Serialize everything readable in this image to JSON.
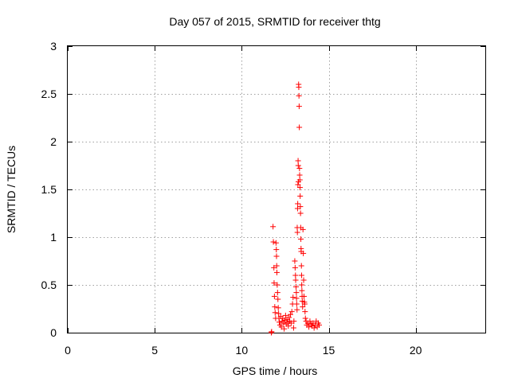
{
  "chart_data": {
    "type": "scatter",
    "title": "Day 057 of 2015, SRMTID for receiver thtg",
    "xlabel": "GPS time / hours",
    "ylabel": "SRMTID / TECUs",
    "xlim": [
      0,
      24
    ],
    "ylim": [
      0,
      3
    ],
    "xticks": [
      "0",
      "5",
      "10",
      "15",
      "20"
    ],
    "yticks": [
      "0",
      "0.5",
      "1",
      "1.5",
      "2",
      "2.5",
      "3"
    ],
    "grid": true,
    "marker": "+",
    "marker_color": "#ff0000",
    "series": [
      {
        "name": "SRMTID",
        "points": [
          [
            11.7,
            0.0
          ],
          [
            11.72,
            0.01
          ],
          [
            11.8,
            1.11
          ],
          [
            11.82,
            0.95
          ],
          [
            11.85,
            0.68
          ],
          [
            11.86,
            0.52
          ],
          [
            11.88,
            0.38
          ],
          [
            11.9,
            0.27
          ],
          [
            11.92,
            0.21
          ],
          [
            11.95,
            0.15
          ],
          [
            11.97,
            0.94
          ],
          [
            11.99,
            0.87
          ],
          [
            12.0,
            0.8
          ],
          [
            12.01,
            0.7
          ],
          [
            12.02,
            0.63
          ],
          [
            12.04,
            0.5
          ],
          [
            12.06,
            0.42
          ],
          [
            12.08,
            0.35
          ],
          [
            12.1,
            0.26
          ],
          [
            12.12,
            0.2
          ],
          [
            12.14,
            0.15
          ],
          [
            12.16,
            0.11
          ],
          [
            12.2,
            0.08
          ],
          [
            12.24,
            0.17
          ],
          [
            12.28,
            0.06
          ],
          [
            12.32,
            0.12
          ],
          [
            12.36,
            0.15
          ],
          [
            12.4,
            0.1
          ],
          [
            12.44,
            0.04
          ],
          [
            12.48,
            0.13
          ],
          [
            12.52,
            0.18
          ],
          [
            12.56,
            0.09
          ],
          [
            12.6,
            0.14
          ],
          [
            12.64,
            0.11
          ],
          [
            12.68,
            0.07
          ],
          [
            12.72,
            0.16
          ],
          [
            12.76,
            0.12
          ],
          [
            12.8,
            0.19
          ],
          [
            12.84,
            0.1
          ],
          [
            12.88,
            0.22
          ],
          [
            12.92,
            0.3
          ],
          [
            12.95,
            0.37
          ],
          [
            12.98,
            0.05
          ],
          [
            13.0,
            0.12
          ],
          [
            13.05,
            0.75
          ],
          [
            13.07,
            0.68
          ],
          [
            13.09,
            0.6
          ],
          [
            13.1,
            0.55
          ],
          [
            13.12,
            0.48
          ],
          [
            13.14,
            0.42
          ],
          [
            13.15,
            0.36
          ],
          [
            13.16,
            0.3
          ],
          [
            13.18,
            0.24
          ],
          [
            13.19,
            1.1
          ],
          [
            13.2,
            1.05
          ],
          [
            13.21,
            1.3
          ],
          [
            13.22,
            1.35
          ],
          [
            13.23,
            1.55
          ],
          [
            13.24,
            1.8
          ],
          [
            13.25,
            1.75
          ],
          [
            13.26,
            1.58
          ],
          [
            13.27,
            2.6
          ],
          [
            13.28,
            2.57
          ],
          [
            13.29,
            2.48
          ],
          [
            13.3,
            2.37
          ],
          [
            13.31,
            2.15
          ],
          [
            13.32,
            1.72
          ],
          [
            13.33,
            1.65
          ],
          [
            13.34,
            1.6
          ],
          [
            13.35,
            1.52
          ],
          [
            13.36,
            1.43
          ],
          [
            13.37,
            1.32
          ],
          [
            13.38,
            1.25
          ],
          [
            13.39,
            1.1
          ],
          [
            13.4,
            0.98
          ],
          [
            13.41,
            0.88
          ],
          [
            13.42,
            0.85
          ],
          [
            13.43,
            0.7
          ],
          [
            13.44,
            0.6
          ],
          [
            13.45,
            0.5
          ],
          [
            13.46,
            0.44
          ],
          [
            13.47,
            0.38
          ],
          [
            13.48,
            0.33
          ],
          [
            13.5,
            0.27
          ],
          [
            13.52,
            1.08
          ],
          [
            13.54,
            0.83
          ],
          [
            13.56,
            0.55
          ],
          [
            13.58,
            0.38
          ],
          [
            13.6,
            0.32
          ],
          [
            13.62,
            0.3
          ],
          [
            13.64,
            0.22
          ],
          [
            13.66,
            0.15
          ],
          [
            13.7,
            0.12
          ],
          [
            13.74,
            0.08
          ],
          [
            13.8,
            0.1
          ],
          [
            13.86,
            0.06
          ],
          [
            13.92,
            0.12
          ],
          [
            13.98,
            0.09
          ],
          [
            14.04,
            0.07
          ],
          [
            14.1,
            0.1
          ],
          [
            14.16,
            0.05
          ],
          [
            14.22,
            0.08
          ],
          [
            14.28,
            0.12
          ],
          [
            14.34,
            0.06
          ],
          [
            14.4,
            0.1
          ],
          [
            14.45,
            0.08
          ]
        ]
      }
    ]
  }
}
